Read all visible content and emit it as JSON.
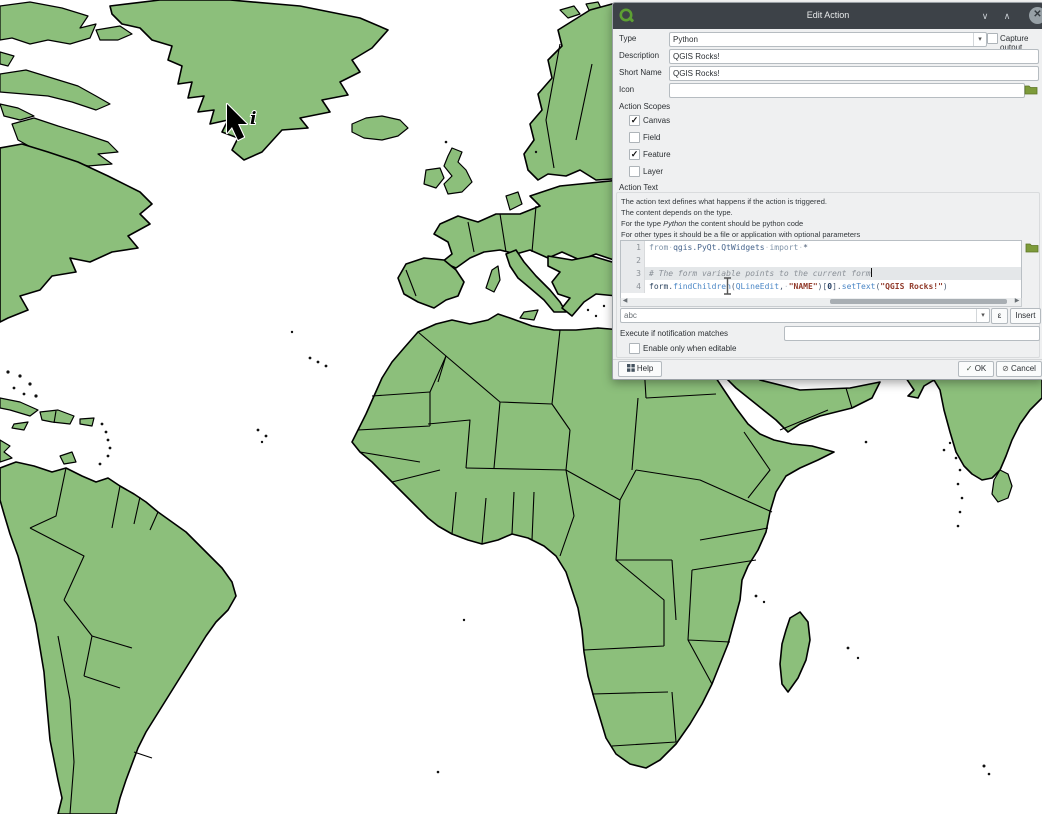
{
  "colors": {
    "land": "#8cbf7b",
    "land_border": "#000000",
    "ocean": "#ffffff",
    "titlebar": "#3d4248",
    "dialog_bg": "#eff0f1",
    "folder_icon": "#7d9b3a"
  },
  "window": {
    "title": "Edit Action"
  },
  "form": {
    "type_label": "Type",
    "type_value": "Python",
    "capture_output_label": "Capture output",
    "capture_output_checked": false,
    "description_label": "Description",
    "description_value": "QGIS Rocks!",
    "short_name_label": "Short Name",
    "short_name_value": "QGIS Rocks!",
    "icon_label": "Icon",
    "icon_value": ""
  },
  "action_scopes": {
    "label": "Action Scopes",
    "items": [
      {
        "label": "Canvas",
        "checked": true
      },
      {
        "label": "Field",
        "checked": false
      },
      {
        "label": "Feature",
        "checked": true
      },
      {
        "label": "Layer",
        "checked": false
      }
    ]
  },
  "action_text": {
    "label": "Action Text",
    "desc_line1": "The action text defines what happens if the action is triggered.",
    "desc_line2": "The content depends on the type.",
    "desc_line3_pre": "For the type ",
    "desc_line3_italic": "Python",
    "desc_line3_post": " the content should be python code",
    "desc_line4": "For other types it should be a file or application with optional parameters",
    "code_lines": [
      {
        "num": "1",
        "current": false,
        "tokens": [
          {
            "t": "from",
            "c": "kw"
          },
          {
            "t": "·",
            "c": "ws"
          },
          {
            "t": "qgis.PyQt.QtWidgets",
            "c": "mod"
          },
          {
            "t": "·",
            "c": "ws"
          },
          {
            "t": "import",
            "c": "kw"
          },
          {
            "t": "·",
            "c": "ws"
          },
          {
            "t": "*",
            "c": "op"
          }
        ]
      },
      {
        "num": "2",
        "current": false,
        "tokens": []
      },
      {
        "num": "3",
        "current": true,
        "tokens": [
          {
            "t": "# The form variable points to the current form",
            "c": "com"
          }
        ]
      },
      {
        "num": "4",
        "current": false,
        "tokens": [
          {
            "t": "form",
            "c": "id"
          },
          {
            "t": ".",
            "c": "op"
          },
          {
            "t": "findChildren",
            "c": "fn"
          },
          {
            "t": "(",
            "c": "op"
          },
          {
            "t": "QLineEdit",
            "c": "fn"
          },
          {
            "t": ",",
            "c": "op"
          },
          {
            "t": "·",
            "c": "ws"
          },
          {
            "t": "\"NAME\"",
            "c": "str"
          },
          {
            "t": ")[",
            "c": "op"
          },
          {
            "t": "0",
            "c": "num"
          },
          {
            "t": "].",
            "c": "op"
          },
          {
            "t": "setText",
            "c": "fn"
          },
          {
            "t": "(",
            "c": "op"
          },
          {
            "t": "\"QGIS Rocks!\"",
            "c": "str"
          },
          {
            "t": ")",
            "c": "op"
          }
        ]
      }
    ],
    "variable_combo_value": "abc",
    "expression_button_label": "ε",
    "insert_button_label": "Insert",
    "execute_label": "Execute if notification matches",
    "execute_value": "",
    "enable_label": "Enable only when editable",
    "enable_checked": false
  },
  "footer": {
    "help_label": "Help",
    "ok_label": "OK",
    "cancel_label": "Cancel"
  }
}
